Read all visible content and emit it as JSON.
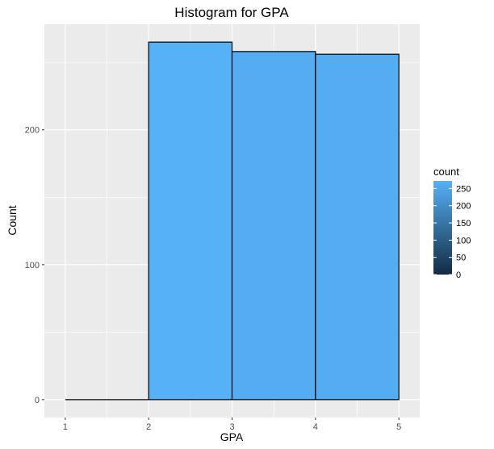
{
  "chart_data": {
    "type": "bar",
    "title": "Histogram for GPA",
    "xlabel": "GPA",
    "ylabel": "Count",
    "bins": [
      {
        "x0": 1,
        "x1": 2,
        "count": 0
      },
      {
        "x0": 2,
        "x1": 3,
        "count": 265
      },
      {
        "x0": 3,
        "x1": 4,
        "count": 258
      },
      {
        "x0": 4,
        "x1": 5,
        "count": 256
      }
    ],
    "xlim": [
      0.75,
      5.25
    ],
    "ylim": [
      -13.25,
      278.25
    ],
    "xticks": [
      1,
      2,
      3,
      4,
      5
    ],
    "yticks": [
      0,
      100,
      200
    ],
    "grid": true,
    "bar_outline_color": "#000000",
    "fill_scale": {
      "low": "#132B43",
      "high": "#56B1F7"
    },
    "legend": {
      "title": "count",
      "position": "right",
      "breaks": [
        0,
        50,
        100,
        150,
        200,
        250
      ],
      "range": [
        0,
        265
      ]
    }
  }
}
